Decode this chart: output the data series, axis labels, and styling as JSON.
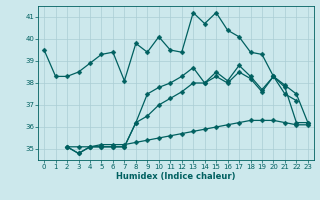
{
  "xlabel": "Humidex (Indice chaleur)",
  "bg_color": "#cce8ec",
  "grid_color": "#aacdd4",
  "line_color": "#006060",
  "xlim": [
    -0.5,
    23.5
  ],
  "ylim": [
    34.5,
    41.5
  ],
  "xticks": [
    0,
    1,
    2,
    3,
    4,
    5,
    6,
    7,
    8,
    9,
    10,
    11,
    12,
    13,
    14,
    15,
    16,
    17,
    18,
    19,
    20,
    21,
    22,
    23
  ],
  "yticks": [
    35,
    36,
    37,
    38,
    39,
    40,
    41
  ],
  "curve1_x": [
    0,
    1,
    2,
    3,
    4,
    5,
    6,
    7,
    8,
    9,
    10,
    11,
    12,
    13,
    14,
    15,
    16,
    17,
    18,
    19,
    20,
    21,
    22
  ],
  "curve1_y": [
    39.5,
    38.3,
    38.3,
    38.5,
    38.9,
    39.3,
    39.4,
    38.1,
    39.8,
    39.4,
    40.1,
    39.5,
    39.4,
    41.2,
    40.7,
    41.2,
    40.4,
    40.1,
    39.4,
    39.3,
    38.3,
    37.5,
    37.2
  ],
  "curve2_x": [
    2,
    3,
    4,
    5,
    6,
    7,
    8,
    9,
    10,
    11,
    12,
    13,
    14,
    15,
    16,
    17,
    18,
    19,
    20,
    21,
    22,
    23
  ],
  "curve2_y": [
    35.1,
    35.1,
    35.1,
    35.2,
    35.2,
    35.2,
    35.3,
    35.4,
    35.5,
    35.6,
    35.7,
    35.8,
    35.9,
    36.0,
    36.1,
    36.2,
    36.3,
    36.3,
    36.3,
    36.2,
    36.1,
    36.1
  ],
  "curve3_x": [
    2,
    3,
    4,
    5,
    6,
    7,
    8,
    9,
    10,
    11,
    12,
    13,
    14,
    15,
    16,
    17,
    18,
    19,
    20,
    21,
    22,
    23
  ],
  "curve3_y": [
    35.1,
    34.8,
    35.1,
    35.1,
    35.1,
    35.1,
    36.2,
    37.5,
    37.8,
    38.0,
    38.3,
    38.7,
    38.0,
    38.5,
    38.1,
    38.8,
    38.3,
    37.7,
    38.3,
    37.9,
    37.5,
    36.2
  ],
  "curve4_x": [
    2,
    3,
    4,
    5,
    6,
    7,
    8,
    9,
    10,
    11,
    12,
    13,
    14,
    15,
    16,
    17,
    18,
    19,
    20,
    21,
    22,
    23
  ],
  "curve4_y": [
    35.1,
    34.8,
    35.1,
    35.1,
    35.1,
    35.1,
    36.2,
    36.5,
    37.0,
    37.3,
    37.6,
    38.0,
    38.0,
    38.3,
    38.0,
    38.5,
    38.2,
    37.6,
    38.3,
    37.8,
    36.2,
    36.2
  ]
}
